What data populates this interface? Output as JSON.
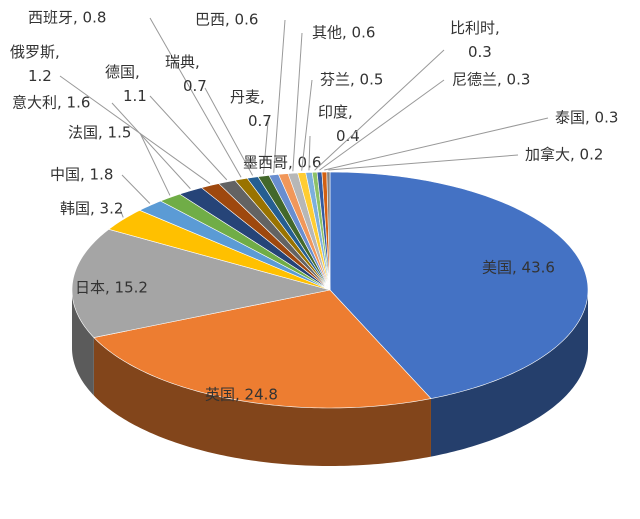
{
  "chart_data": {
    "type": "pie3d",
    "values": [
      43.6,
      24.8,
      15.2,
      3.2,
      1.8,
      1.5,
      1.6,
      1.2,
      1.1,
      0.8,
      0.7,
      0.7,
      0.6,
      0.6,
      0.6,
      0.5,
      0.4,
      0.3,
      0.3,
      0.3,
      0.2
    ],
    "value_labels": [
      "美国, 43.6",
      "英国, 24.8",
      "日本, 15.2",
      "韩国, 3.2",
      "中国, 1.8",
      "法国, 1.5",
      "意大利, 1.6",
      "俄罗斯, 1.2",
      "德国, 1.1",
      "西班牙, 0.8",
      "瑞典, 0.7",
      "丹麦, 0.7",
      "巴西, 0.6",
      "墨西哥, 0.6",
      "其他, 0.6",
      "芬兰, 0.5",
      "印度, 0.4",
      "比利时, 0.3",
      "尼德兰, 0.3",
      "泰国, 0.3",
      "加拿大, 0.2"
    ],
    "colors": [
      "#4472c4",
      "#ed7d31",
      "#a5a5a5",
      "#ffc000",
      "#5b9bd5",
      "#70ad47",
      "#264478",
      "#9e480e",
      "#636363",
      "#997300",
      "#255e91",
      "#43682b",
      "#698ed0",
      "#f1975a",
      "#b7b7b7",
      "#ffcd33",
      "#7cafdd",
      "#8cc168",
      "#335aa1",
      "#d26012",
      "#848484"
    ]
  }
}
